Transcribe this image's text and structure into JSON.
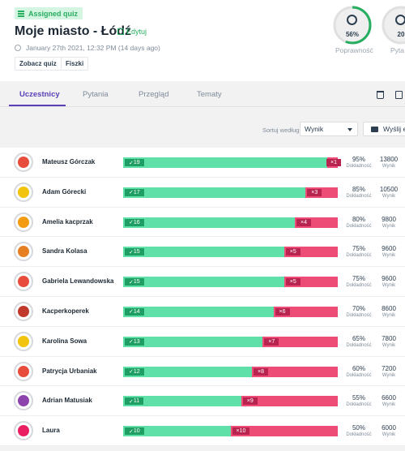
{
  "header": {
    "badge": "Assigned quiz",
    "title": "Moje miasto - Łódź",
    "edit_label": "Edytuj",
    "date": "January 27th 2021, 12:32 PM (14 days ago)",
    "view_quiz_label": "Zobacz quiz",
    "flashcards_label": "Fiszki"
  },
  "stats": [
    {
      "value": "56%",
      "label": "Poprawność",
      "fraction": 0.56
    },
    {
      "value": "20",
      "label": "Pyta"
    }
  ],
  "tabs": [
    "Uczestnicy",
    "Pytania",
    "Przegląd",
    "Tematy"
  ],
  "toolbar": {
    "sort_label": "Sortuj według:",
    "sort_value": "Wynik",
    "send_label": "Wyślij e-"
  },
  "columns": {
    "accuracy": "Dokładność",
    "score": "Wynik"
  },
  "participants": [
    {
      "name": "Mateusz Górczak",
      "correct": 19,
      "wrong": 1,
      "accuracy": "95%",
      "score": "13800",
      "color": "#e74c3c"
    },
    {
      "name": "Adam Górecki",
      "correct": 17,
      "wrong": 3,
      "accuracy": "85%",
      "score": "10500",
      "color": "#f1c40f"
    },
    {
      "name": "Amelia kacprzak",
      "correct": 16,
      "wrong": 4,
      "accuracy": "80%",
      "score": "9800",
      "color": "#f39c12"
    },
    {
      "name": "Sandra Kolasa",
      "correct": 15,
      "wrong": 5,
      "accuracy": "75%",
      "score": "9600",
      "color": "#e67e22"
    },
    {
      "name": "Gabriela Lewandowska",
      "correct": 15,
      "wrong": 5,
      "accuracy": "75%",
      "score": "9600",
      "color": "#e74c3c"
    },
    {
      "name": "Kacperkoperek",
      "correct": 14,
      "wrong": 6,
      "accuracy": "70%",
      "score": "8600",
      "color": "#c0392b"
    },
    {
      "name": "Karolina Sowa",
      "correct": 13,
      "wrong": 7,
      "accuracy": "65%",
      "score": "7800",
      "color": "#f1c40f"
    },
    {
      "name": "Patrycja Urbaniak",
      "correct": 12,
      "wrong": 8,
      "accuracy": "60%",
      "score": "7200",
      "color": "#e74c3c"
    },
    {
      "name": "Adrian Matusiak",
      "correct": 11,
      "wrong": 9,
      "accuracy": "55%",
      "score": "6600",
      "color": "#8e44ad"
    },
    {
      "name": "Laura",
      "correct": 10,
      "wrong": 10,
      "accuracy": "50%",
      "score": "6000",
      "color": "#e91e63"
    }
  ]
}
